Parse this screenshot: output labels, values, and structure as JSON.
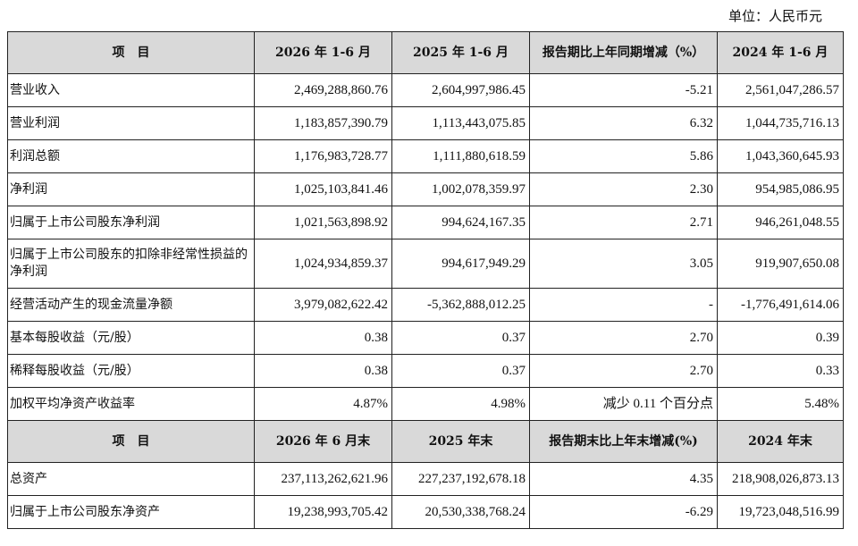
{
  "unit_label": "单位：人民币元",
  "header1": [
    "项　目",
    "2026 年 1-6 月",
    "2025 年 1-6 月",
    "报告期比上年同期增减（%）",
    "2024 年 1-6 月"
  ],
  "rows1": [
    {
      "name": "营业收入",
      "v1": "2,469,288,860.76",
      "v2": "2,604,997,986.45",
      "change": "-5.21",
      "v3": "2,561,047,286.57"
    },
    {
      "name": "营业利润",
      "v1": "1,183,857,390.79",
      "v2": "1,113,443,075.85",
      "change": "6.32",
      "v3": "1,044,735,716.13"
    },
    {
      "name": "利润总额",
      "v1": "1,176,983,728.77",
      "v2": "1,111,880,618.59",
      "change": "5.86",
      "v3": "1,043,360,645.93"
    },
    {
      "name": "净利润",
      "v1": "1,025,103,841.46",
      "v2": "1,002,078,359.97",
      "change": "2.30",
      "v3": "954,985,086.95"
    },
    {
      "name": "归属于上市公司股东净利润",
      "v1": "1,021,563,898.92",
      "v2": "994,624,167.35",
      "change": "2.71",
      "v3": "946,261,048.55"
    },
    {
      "name": "归属于上市公司股东的扣除非经常性损益的净利润",
      "v1": "1,024,934,859.37",
      "v2": "994,617,949.29",
      "change": "3.05",
      "v3": "919,907,650.08"
    },
    {
      "name": "经营活动产生的现金流量净额",
      "v1": "3,979,082,622.42",
      "v2": "-5,362,888,012.25",
      "change": "-",
      "v3": "-1,776,491,614.06"
    },
    {
      "name": "基本每股收益（元/股）",
      "v1": "0.38",
      "v2": "0.37",
      "change": "2.70",
      "v3": "0.39"
    },
    {
      "name": "稀释每股收益（元/股）",
      "v1": "0.38",
      "v2": "0.37",
      "change": "2.70",
      "v3": "0.33"
    },
    {
      "name": "加权平均净资产收益率",
      "v1": "4.87%",
      "v2": "4.98%",
      "change": "减少 0.11 个百分点",
      "v3": "5.48%"
    }
  ],
  "header2": [
    "项　目",
    "2026 年 6 月末",
    "2025 年末",
    "报告期末比上年末增减(%)",
    "2024 年末"
  ],
  "rows2": [
    {
      "name": "总资产",
      "v1": "237,113,262,621.96",
      "v2": "227,237,192,678.18",
      "change": "4.35",
      "v3": "218,908,026,873.13"
    },
    {
      "name": "归属于上市公司股东净资产",
      "v1": "19,238,993,705.42",
      "v2": "20,530,338,768.24",
      "change": "-6.29",
      "v3": "19,723,048,516.99"
    }
  ]
}
